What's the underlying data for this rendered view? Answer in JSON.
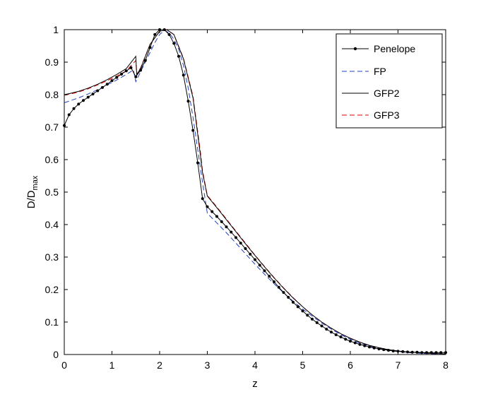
{
  "chart_data": {
    "type": "line",
    "xlabel": "z",
    "ylabel": "D/D",
    "ylabel_subscript": "max",
    "xlim": [
      0,
      8
    ],
    "ylim": [
      0,
      1
    ],
    "xticks": [
      0,
      1,
      2,
      3,
      4,
      5,
      6,
      7,
      8
    ],
    "yticks": [
      0,
      0.1,
      0.2,
      0.3,
      0.4,
      0.5,
      0.6,
      0.7,
      0.8,
      0.9,
      1
    ],
    "xtick_labels": [
      "0",
      "1",
      "2",
      "3",
      "4",
      "5",
      "6",
      "7",
      "8"
    ],
    "ytick_labels": [
      "0",
      "0.1",
      "0.2",
      "0.3",
      "0.4",
      "0.5",
      "0.6",
      "0.7",
      "0.8",
      "0.9",
      "1"
    ],
    "grid": false,
    "legend_position": "top-right",
    "series": [
      {
        "name": "Penelope",
        "color": "#000000",
        "style": "solid-dots",
        "x": [
          0,
          0.1,
          0.2,
          0.3,
          0.4,
          0.5,
          0.6,
          0.7,
          0.8,
          0.9,
          1.0,
          1.1,
          1.2,
          1.3,
          1.4,
          1.5,
          1.6,
          1.7,
          1.8,
          1.9,
          2.0,
          2.1,
          2.2,
          2.3,
          2.4,
          2.5,
          2.6,
          2.7,
          2.8,
          2.9,
          3.0,
          3.1,
          3.2,
          3.3,
          3.4,
          3.5,
          3.6,
          3.7,
          3.8,
          3.9,
          4.0,
          4.1,
          4.2,
          4.3,
          4.4,
          4.5,
          4.6,
          4.7,
          4.8,
          4.9,
          5.0,
          5.1,
          5.2,
          5.3,
          5.4,
          5.5,
          5.6,
          5.7,
          5.8,
          5.9,
          6.0,
          6.1,
          6.2,
          6.3,
          6.4,
          6.5,
          6.6,
          6.7,
          6.8,
          6.9,
          7.0,
          7.1,
          7.2,
          7.3,
          7.4,
          7.5,
          7.6,
          7.7,
          7.8,
          7.9,
          8.0
        ],
        "y": [
          0.705,
          0.738,
          0.757,
          0.771,
          0.782,
          0.792,
          0.802,
          0.812,
          0.822,
          0.832,
          0.843,
          0.853,
          0.863,
          0.873,
          0.883,
          0.855,
          0.875,
          0.905,
          0.945,
          0.985,
          1.0,
          1.0,
          0.985,
          0.958,
          0.918,
          0.86,
          0.78,
          0.69,
          0.59,
          0.48,
          0.455,
          0.44,
          0.425,
          0.409,
          0.393,
          0.377,
          0.36,
          0.343,
          0.326,
          0.309,
          0.292,
          0.275,
          0.258,
          0.241,
          0.224,
          0.207,
          0.191,
          0.176,
          0.161,
          0.147,
          0.134,
          0.121,
          0.109,
          0.098,
          0.088,
          0.078,
          0.069,
          0.061,
          0.054,
          0.047,
          0.041,
          0.036,
          0.031,
          0.027,
          0.023,
          0.02,
          0.017,
          0.015,
          0.013,
          0.011,
          0.01,
          0.009,
          0.008,
          0.007,
          0.007,
          0.006,
          0.006,
          0.006,
          0.006,
          0.006,
          0.006
        ]
      },
      {
        "name": "FP",
        "color": "#1f3fbf",
        "style": "dashed",
        "x": [
          0,
          0.1,
          0.3,
          0.5,
          0.7,
          0.9,
          1.1,
          1.3,
          1.45,
          1.5,
          1.55,
          1.7,
          1.9,
          2.0,
          2.1,
          2.2,
          2.3,
          2.4,
          2.5,
          2.6,
          2.7,
          2.8,
          2.9,
          3.0,
          3.2,
          3.4,
          3.6,
          3.8,
          4.0,
          4.2,
          4.4,
          4.6,
          4.8,
          5.0,
          5.2,
          5.4,
          5.6,
          5.8,
          6.0,
          6.2,
          6.4,
          6.6,
          6.8,
          7.0,
          7.2,
          7.4,
          7.6,
          7.8,
          8.0
        ],
        "y": [
          0.775,
          0.78,
          0.79,
          0.802,
          0.815,
          0.83,
          0.845,
          0.862,
          0.876,
          0.84,
          0.855,
          0.9,
          0.96,
          0.985,
          0.998,
          0.99,
          0.97,
          0.94,
          0.89,
          0.82,
          0.73,
          0.63,
          0.53,
          0.435,
          0.405,
          0.375,
          0.343,
          0.31,
          0.278,
          0.247,
          0.218,
          0.19,
          0.164,
          0.14,
          0.118,
          0.097,
          0.078,
          0.061,
          0.047,
          0.035,
          0.026,
          0.019,
          0.013,
          0.009,
          0.006,
          0.004,
          0.003,
          0.002,
          0.001
        ]
      },
      {
        "name": "GFP2",
        "color": "#000000",
        "style": "solid",
        "x": [
          0,
          0.1,
          0.3,
          0.5,
          0.7,
          0.9,
          1.1,
          1.3,
          1.5,
          1.52,
          1.6,
          1.8,
          2.0,
          2.15,
          2.3,
          2.5,
          2.7,
          2.85,
          2.9,
          3.0,
          3.2,
          3.4,
          3.6,
          3.8,
          4.0,
          4.2,
          4.4,
          4.6,
          4.8,
          5.0,
          5.2,
          5.4,
          5.6,
          5.8,
          6.0,
          6.2,
          6.4,
          6.6,
          6.8,
          7.0,
          7.2,
          7.4,
          7.6,
          7.8,
          8.0
        ],
        "y": [
          0.8,
          0.803,
          0.81,
          0.82,
          0.832,
          0.846,
          0.862,
          0.88,
          0.918,
          0.862,
          0.88,
          0.955,
          0.995,
          1.0,
          0.985,
          0.91,
          0.79,
          0.62,
          0.56,
          0.488,
          0.452,
          0.415,
          0.378,
          0.341,
          0.305,
          0.27,
          0.236,
          0.204,
          0.174,
          0.147,
          0.122,
          0.1,
          0.081,
          0.064,
          0.05,
          0.038,
          0.028,
          0.021,
          0.015,
          0.011,
          0.008,
          0.006,
          0.004,
          0.003,
          0.002
        ]
      },
      {
        "name": "GFP3",
        "color": "#e00000",
        "style": "dashed",
        "x": [
          0,
          0.1,
          0.3,
          0.5,
          0.7,
          0.9,
          1.1,
          1.3,
          1.5,
          1.52,
          1.6,
          1.8,
          2.0,
          2.15,
          2.3,
          2.5,
          2.7,
          2.85,
          2.9,
          3.0,
          3.2,
          3.4,
          3.6,
          3.8,
          4.0,
          4.2,
          4.4,
          4.6,
          4.8,
          5.0,
          5.2,
          5.4,
          5.6,
          5.8,
          6.0,
          6.2,
          6.4,
          6.6,
          6.8,
          7.0,
          7.2,
          7.4,
          7.6,
          7.8,
          8.0
        ],
        "y": [
          0.798,
          0.801,
          0.808,
          0.818,
          0.83,
          0.843,
          0.857,
          0.873,
          0.905,
          0.862,
          0.882,
          0.955,
          0.995,
          1.0,
          0.985,
          0.912,
          0.795,
          0.63,
          0.565,
          0.49,
          0.454,
          0.417,
          0.38,
          0.343,
          0.306,
          0.271,
          0.237,
          0.205,
          0.175,
          0.147,
          0.122,
          0.1,
          0.081,
          0.064,
          0.05,
          0.038,
          0.028,
          0.021,
          0.015,
          0.011,
          0.008,
          0.006,
          0.004,
          0.003,
          0.002
        ]
      }
    ]
  }
}
